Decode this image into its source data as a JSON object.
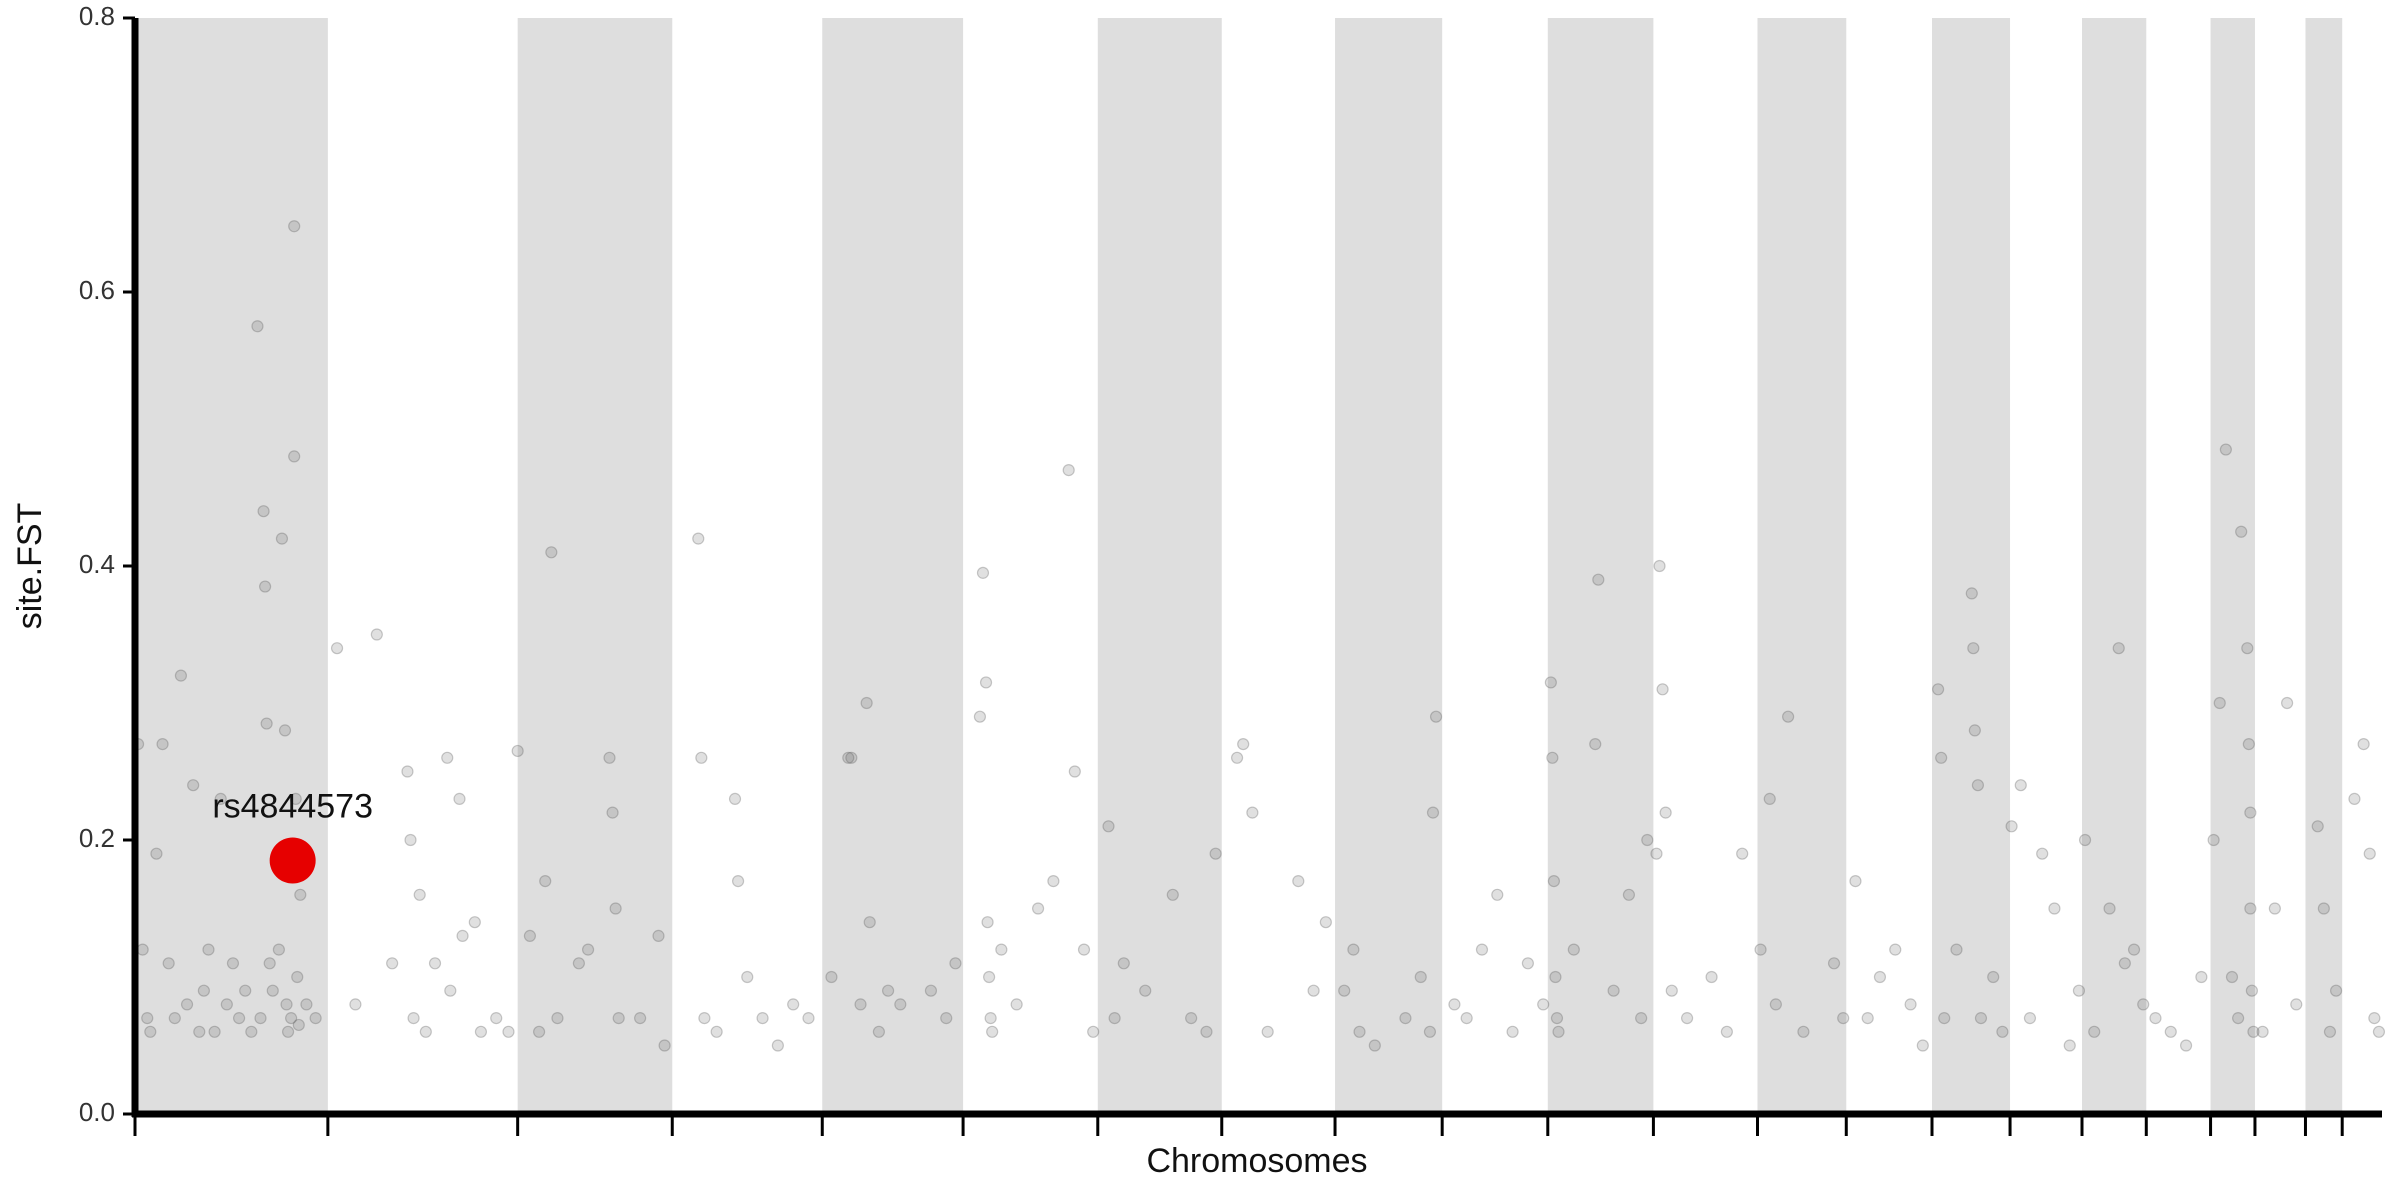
{
  "chart_data": {
    "type": "scatter",
    "xlabel": "Chromosomes",
    "ylabel": "site.FST",
    "xlim": [
      0,
      1468
    ],
    "ylim": [
      0,
      0.8
    ],
    "yticks": [
      {
        "value": 0,
        "label": "0.0"
      },
      0.2,
      0.4,
      0.6,
      0.8
    ],
    "xticks": [
      0,
      126,
      250,
      351,
      449,
      541,
      629,
      710,
      784,
      854,
      923,
      992,
      1060,
      1118,
      1174,
      1225,
      1272,
      1314,
      1356,
      1385,
      1418,
      1442
    ],
    "bands": [
      [
        0,
        126
      ],
      [
        250,
        351
      ],
      [
        449,
        541
      ],
      [
        629,
        710
      ],
      [
        784,
        854
      ],
      [
        923,
        992
      ],
      [
        1060,
        1118
      ],
      [
        1174,
        1225
      ],
      [
        1272,
        1314
      ],
      [
        1356,
        1385
      ],
      [
        1418,
        1442
      ]
    ],
    "band_color": "#dedede",
    "series": [
      {
        "color": "#555555",
        "x": [
          2,
          5,
          8,
          10,
          14,
          18,
          22,
          26,
          30,
          34,
          38,
          42,
          45,
          48,
          52,
          56,
          60,
          64,
          68,
          72,
          76,
          80,
          82,
          84,
          85,
          86,
          88,
          90,
          94,
          96,
          98,
          99,
          100,
          102,
          104,
          104,
          105,
          106,
          107,
          108,
          112,
          118,
          132,
          144,
          158,
          168,
          178,
          180,
          182,
          186,
          190,
          196,
          204,
          206,
          212,
          214,
          222,
          226,
          236,
          244,
          250,
          258,
          264,
          268,
          272,
          276,
          290,
          296,
          310,
          312,
          314,
          316,
          330,
          342,
          346,
          368,
          370,
          372,
          380,
          392,
          394,
          400,
          410,
          420,
          430,
          440,
          455,
          466,
          468,
          474,
          478,
          480,
          486,
          492,
          500,
          520,
          530,
          536,
          552,
          554,
          556,
          557,
          558,
          559,
          560,
          566,
          576,
          590,
          600,
          610,
          614,
          620,
          626,
          636,
          640,
          646,
          660,
          678,
          690,
          700,
          706,
          720,
          724,
          730,
          740,
          760,
          770,
          778,
          790,
          796,
          800,
          810,
          830,
          840,
          846,
          850,
          848,
          862,
          870,
          880,
          890,
          900,
          910,
          920,
          925,
          926,
          927,
          928,
          929,
          930,
          940,
          954,
          956,
          966,
          976,
          984,
          988,
          994,
          996,
          998,
          1000,
          1004,
          1014,
          1030,
          1040,
          1050,
          1062,
          1068,
          1072,
          1080,
          1090,
          1110,
          1116,
          1124,
          1132,
          1140,
          1150,
          1160,
          1168,
          1178,
          1180,
          1182,
          1190,
          1200,
          1201,
          1202,
          1204,
          1206,
          1214,
          1220,
          1226,
          1232,
          1238,
          1246,
          1254,
          1264,
          1270,
          1274,
          1280,
          1290,
          1296,
          1300,
          1306,
          1312,
          1320,
          1330,
          1340,
          1350,
          1358,
          1362,
          1366,
          1370,
          1374,
          1376,
          1380,
          1381,
          1382,
          1383,
          1384,
          1382,
          1390,
          1398,
          1406,
          1412,
          1426,
          1430,
          1434,
          1438,
          1450,
          1456,
          1460,
          1463,
          1466
        ],
        "values": [
          0.27,
          0.12,
          0.07,
          0.06,
          0.19,
          0.27,
          0.11,
          0.07,
          0.32,
          0.08,
          0.24,
          0.06,
          0.09,
          0.12,
          0.06,
          0.23,
          0.08,
          0.11,
          0.07,
          0.09,
          0.06,
          0.575,
          0.07,
          0.44,
          0.385,
          0.285,
          0.11,
          0.09,
          0.12,
          0.42,
          0.28,
          0.08,
          0.06,
          0.07,
          0.648,
          0.48,
          0.23,
          0.1,
          0.065,
          0.16,
          0.08,
          0.07,
          0.34,
          0.08,
          0.35,
          0.11,
          0.25,
          0.2,
          0.07,
          0.16,
          0.06,
          0.11,
          0.26,
          0.09,
          0.23,
          0.13,
          0.14,
          0.06,
          0.07,
          0.06,
          0.265,
          0.13,
          0.06,
          0.17,
          0.41,
          0.07,
          0.11,
          0.12,
          0.26,
          0.22,
          0.15,
          0.07,
          0.07,
          0.13,
          0.05,
          0.42,
          0.26,
          0.07,
          0.06,
          0.23,
          0.17,
          0.1,
          0.07,
          0.05,
          0.08,
          0.07,
          0.1,
          0.26,
          0.26,
          0.08,
          0.3,
          0.14,
          0.06,
          0.09,
          0.08,
          0.09,
          0.07,
          0.11,
          0.29,
          0.395,
          0.315,
          0.14,
          0.1,
          0.07,
          0.06,
          0.12,
          0.08,
          0.15,
          0.17,
          0.47,
          0.25,
          0.12,
          0.06,
          0.21,
          0.07,
          0.11,
          0.09,
          0.16,
          0.07,
          0.06,
          0.19,
          0.26,
          0.27,
          0.22,
          0.06,
          0.17,
          0.09,
          0.14,
          0.09,
          0.12,
          0.06,
          0.05,
          0.07,
          0.1,
          0.06,
          0.29,
          0.22,
          0.08,
          0.07,
          0.12,
          0.16,
          0.06,
          0.11,
          0.08,
          0.315,
          0.26,
          0.17,
          0.1,
          0.07,
          0.06,
          0.12,
          0.27,
          0.39,
          0.09,
          0.16,
          0.07,
          0.2,
          0.19,
          0.4,
          0.31,
          0.22,
          0.09,
          0.07,
          0.1,
          0.06,
          0.19,
          0.12,
          0.23,
          0.08,
          0.29,
          0.06,
          0.11,
          0.07,
          0.17,
          0.07,
          0.1,
          0.12,
          0.08,
          0.05,
          0.31,
          0.26,
          0.07,
          0.12,
          0.38,
          0.34,
          0.28,
          0.24,
          0.07,
          0.1,
          0.06,
          0.21,
          0.24,
          0.07,
          0.19,
          0.15,
          0.05,
          0.09,
          0.2,
          0.06,
          0.15,
          0.34,
          0.11,
          0.12,
          0.08,
          0.07,
          0.06,
          0.05,
          0.1,
          0.2,
          0.3,
          0.485,
          0.1,
          0.07,
          0.425,
          0.34,
          0.27,
          0.15,
          0.09,
          0.06,
          0.22,
          0.06,
          0.15,
          0.3,
          0.08,
          0.21,
          0.15,
          0.06,
          0.09,
          0.23,
          0.27,
          0.19,
          0.07,
          0.06
        ]
      }
    ],
    "highlight": {
      "name": "rs4844573",
      "color": "#e60000",
      "x": 103,
      "value": 0.185
    }
  }
}
